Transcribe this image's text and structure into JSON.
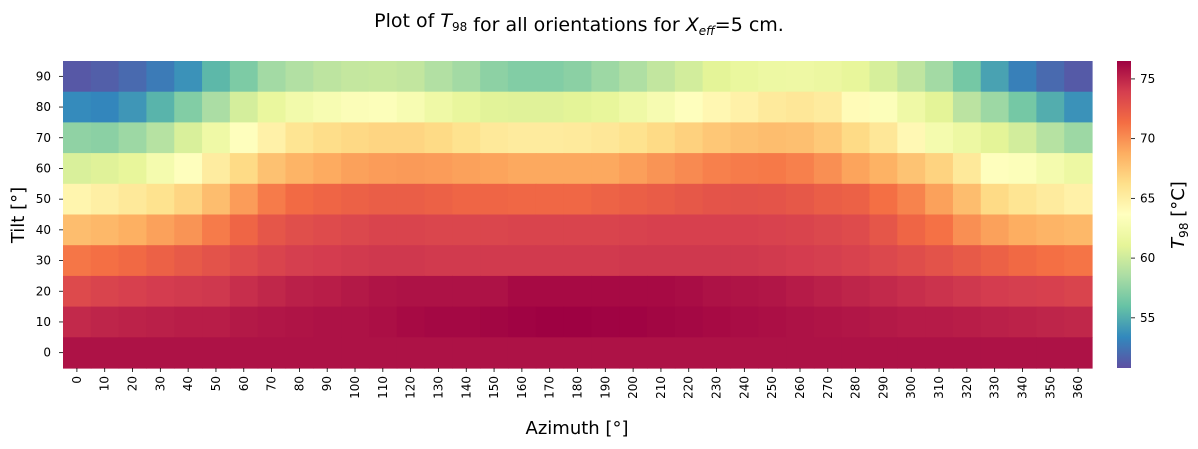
{
  "chart_data": {
    "type": "heatmap",
    "title_parts": [
      "Plot of ",
      "T",
      "98",
      " for all orientations for ",
      "X",
      "eff",
      "=5 cm."
    ],
    "xlabel": "Azimuth [°]",
    "ylabel": "Tilt [°]",
    "colorbar_label_parts": [
      "T",
      "98",
      " [°C]"
    ],
    "colormap": "Spectral_r",
    "vmin": 50.8,
    "vmax": 76.5,
    "colorbar_ticks": [
      55,
      60,
      65,
      70,
      75
    ],
    "colorbar_tick_labels": [
      "55",
      "60",
      "65",
      "70",
      "75"
    ],
    "x_categories": [
      "0",
      "10",
      "20",
      "30",
      "40",
      "50",
      "60",
      "70",
      "80",
      "90",
      "100",
      "110",
      "120",
      "130",
      "140",
      "150",
      "160",
      "170",
      "180",
      "190",
      "200",
      "210",
      "220",
      "230",
      "240",
      "250",
      "260",
      "270",
      "280",
      "290",
      "300",
      "310",
      "320",
      "330",
      "340",
      "350",
      "360"
    ],
    "y_categories": [
      "90",
      "80",
      "70",
      "60",
      "50",
      "40",
      "30",
      "20",
      "10",
      "0"
    ],
    "values": [
      [
        51.2,
        51.5,
        52.0,
        52.8,
        53.8,
        55.5,
        56.8,
        58.2,
        58.8,
        59.3,
        59.6,
        59.7,
        59.5,
        58.8,
        58.2,
        57.4,
        57.0,
        57.0,
        57.3,
        58.0,
        58.7,
        59.5,
        60.2,
        61.0,
        61.5,
        61.8,
        61.9,
        61.7,
        61.3,
        60.4,
        59.4,
        58.2,
        56.5,
        54.5,
        53.0,
        52.0,
        51.3
      ],
      [
        53.5,
        53.3,
        54.0,
        55.3,
        57.0,
        58.5,
        60.3,
        61.5,
        62.3,
        62.8,
        63.2,
        63.3,
        62.8,
        62.0,
        61.4,
        60.9,
        60.8,
        60.8,
        61.0,
        61.3,
        62.0,
        62.7,
        63.5,
        64.3,
        64.8,
        65.4,
        65.6,
        65.3,
        64.0,
        63.3,
        62.0,
        61.0,
        59.2,
        58.0,
        56.5,
        55.0,
        53.8
      ],
      [
        57.5,
        57.3,
        58.0,
        59.0,
        60.5,
        62.0,
        63.5,
        64.8,
        65.8,
        66.3,
        66.6,
        66.8,
        66.8,
        66.5,
        66.0,
        65.5,
        65.3,
        65.3,
        65.4,
        65.6,
        66.0,
        66.5,
        67.0,
        67.5,
        67.8,
        68.0,
        67.9,
        67.4,
        66.5,
        65.6,
        64.2,
        62.5,
        61.8,
        61.0,
        60.2,
        59.0,
        58.0
      ],
      [
        60.5,
        60.8,
        61.3,
        62.5,
        63.5,
        65.2,
        66.5,
        67.8,
        68.5,
        68.9,
        69.3,
        69.5,
        69.6,
        69.5,
        69.3,
        69.2,
        69.0,
        69.0,
        69.0,
        69.0,
        69.4,
        69.8,
        70.2,
        70.6,
        70.8,
        70.9,
        70.6,
        70.0,
        69.2,
        68.6,
        67.7,
        66.9,
        65.5,
        63.5,
        63.3,
        62.5,
        61.8
      ],
      [
        64.5,
        65.0,
        65.5,
        66.0,
        66.8,
        68.0,
        69.5,
        70.8,
        71.5,
        71.8,
        72.0,
        72.2,
        72.2,
        72.0,
        71.8,
        71.8,
        71.7,
        71.7,
        71.7,
        71.9,
        72.1,
        72.3,
        72.5,
        72.7,
        72.8,
        72.7,
        72.5,
        72.2,
        72.0,
        71.3,
        70.5,
        69.3,
        68.0,
        66.5,
        65.8,
        65.3,
        64.8
      ],
      [
        68.0,
        68.3,
        68.7,
        69.3,
        69.8,
        70.8,
        71.8,
        72.6,
        73.0,
        73.2,
        73.4,
        73.6,
        73.6,
        73.5,
        73.5,
        73.5,
        73.6,
        73.6,
        73.6,
        73.6,
        73.7,
        73.8,
        73.8,
        73.8,
        73.8,
        73.7,
        73.6,
        73.4,
        73.2,
        72.6,
        71.8,
        71.2,
        70.0,
        69.3,
        68.8,
        68.5,
        68.3
      ],
      [
        71.0,
        71.3,
        71.6,
        72.0,
        72.4,
        72.8,
        73.2,
        73.6,
        73.9,
        74.0,
        74.1,
        74.2,
        74.2,
        74.1,
        74.1,
        74.1,
        74.1,
        74.1,
        74.1,
        74.1,
        74.2,
        74.2,
        74.2,
        74.2,
        74.2,
        74.1,
        74.0,
        73.9,
        73.7,
        73.4,
        73.1,
        72.8,
        72.4,
        72.0,
        71.6,
        71.3,
        71.1
      ],
      [
        73.3,
        73.6,
        73.8,
        74.0,
        74.1,
        74.2,
        74.6,
        74.9,
        75.2,
        75.3,
        75.5,
        75.7,
        75.8,
        75.8,
        75.8,
        75.8,
        76.1,
        76.1,
        76.1,
        76.1,
        76.1,
        76.1,
        76.0,
        75.8,
        75.7,
        75.6,
        75.4,
        75.2,
        75.0,
        74.8,
        74.6,
        74.4,
        74.2,
        74.0,
        73.9,
        73.8,
        73.6
      ],
      [
        74.8,
        75.0,
        75.1,
        75.2,
        75.3,
        75.3,
        75.5,
        75.6,
        75.7,
        75.8,
        75.8,
        75.9,
        76.1,
        76.2,
        76.2,
        76.3,
        76.4,
        76.5,
        76.5,
        76.4,
        76.4,
        76.3,
        76.2,
        76.1,
        76.0,
        75.9,
        75.8,
        75.7,
        75.6,
        75.5,
        75.4,
        75.4,
        75.3,
        75.2,
        75.1,
        75.0,
        74.9
      ],
      [
        75.8,
        75.8,
        75.8,
        75.8,
        75.8,
        75.8,
        75.8,
        75.8,
        75.8,
        75.8,
        75.8,
        75.8,
        75.8,
        75.8,
        75.8,
        75.8,
        75.8,
        75.8,
        75.8,
        75.8,
        75.8,
        75.8,
        75.8,
        75.8,
        75.8,
        75.8,
        75.8,
        75.8,
        75.8,
        75.8,
        75.8,
        75.8,
        75.8,
        75.8,
        75.8,
        75.8,
        75.8
      ]
    ]
  }
}
